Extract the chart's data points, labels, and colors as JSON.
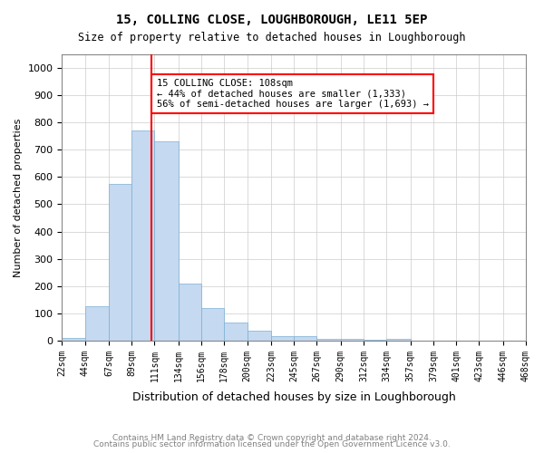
{
  "title": "15, COLLING CLOSE, LOUGHBOROUGH, LE11 5EP",
  "subtitle": "Size of property relative to detached houses in Loughborough",
  "xlabel": "Distribution of detached houses by size in Loughborough",
  "ylabel": "Number of detached properties",
  "bin_labels": [
    "22sqm",
    "44sqm",
    "67sqm",
    "89sqm",
    "111sqm",
    "134sqm",
    "156sqm",
    "178sqm",
    "200sqm",
    "223sqm",
    "245sqm",
    "267sqm",
    "290sqm",
    "312sqm",
    "334sqm",
    "357sqm",
    "379sqm",
    "401sqm",
    "423sqm",
    "446sqm",
    "468sqm"
  ],
  "bin_edges": [
    22,
    44,
    67,
    89,
    111,
    134,
    156,
    178,
    200,
    223,
    245,
    267,
    290,
    312,
    334,
    357,
    379,
    401,
    423,
    446,
    468
  ],
  "bar_heights": [
    10,
    125,
    575,
    770,
    730,
    210,
    120,
    65,
    35,
    15,
    15,
    5,
    5,
    3,
    8,
    1,
    0,
    0,
    0,
    0
  ],
  "bar_color": "#c5d9f0",
  "bar_edge_color": "#7bafd4",
  "grid_color": "#cccccc",
  "red_line_x": 108,
  "annotation_text": "15 COLLING CLOSE: 108sqm\n← 44% of detached houses are smaller (1,333)\n56% of semi-detached houses are larger (1,693) →",
  "annotation_box_color": "white",
  "annotation_box_edge_color": "red",
  "ylim": [
    0,
    1050
  ],
  "yticks": [
    0,
    100,
    200,
    300,
    400,
    500,
    600,
    700,
    800,
    900,
    1000
  ],
  "footer_line1": "Contains HM Land Registry data © Crown copyright and database right 2024.",
  "footer_line2": "Contains public sector information licensed under the Open Government Licence v3.0."
}
